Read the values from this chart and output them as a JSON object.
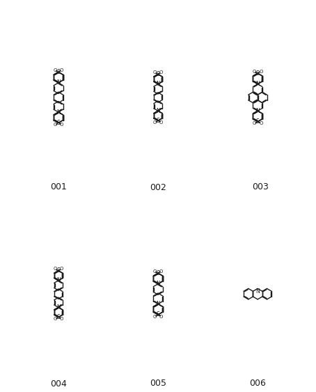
{
  "bg_color": "#ffffff",
  "label_fontsize": 9,
  "figsize": [
    4.54,
    5.63
  ],
  "dpi": 100,
  "ids": [
    "001",
    "002",
    "003",
    "004",
    "005",
    "006"
  ],
  "lw": 1.0,
  "color": "#1a1a1a"
}
